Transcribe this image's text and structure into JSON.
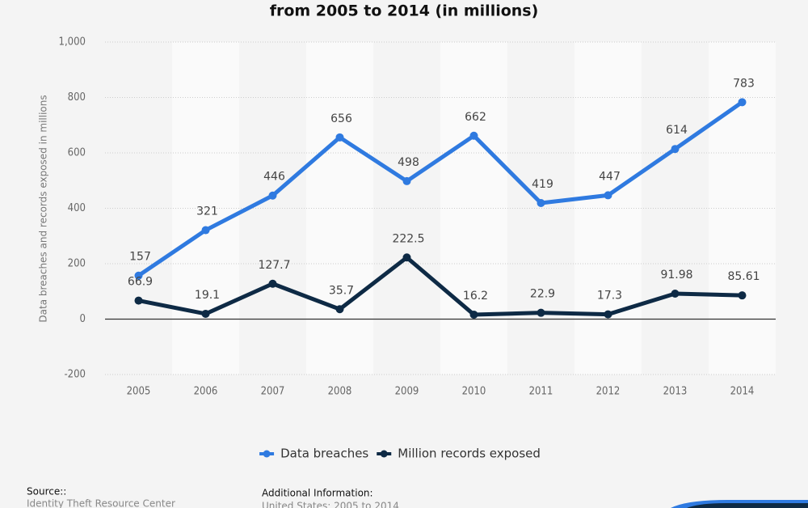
{
  "chart_data": {
    "type": "line",
    "title": "from 2005 to 2014 (in millions)",
    "y_label": "Data breaches and records exposed in millions",
    "categories": [
      "2005",
      "2006",
      "2007",
      "2008",
      "2009",
      "2010",
      "2011",
      "2012",
      "2013",
      "2014"
    ],
    "series": [
      {
        "name": "Data breaches",
        "color": "#2f7ae0",
        "values": [
          157,
          321,
          446,
          656,
          498,
          662,
          419,
          447,
          614,
          783
        ]
      },
      {
        "name": "Million records exposed",
        "color": "#0e2a45",
        "values": [
          66.9,
          19.1,
          127.7,
          35.7,
          222.5,
          16.2,
          22.9,
          17.3,
          91.98,
          85.61
        ]
      }
    ],
    "ylim": [
      -200,
      1000
    ],
    "yticks": [
      -200,
      0,
      200,
      400,
      600,
      800,
      {
        "value": 1000,
        "label": "1,000"
      }
    ],
    "grid": true,
    "legend": "bottom",
    "source_heading": "Source::",
    "source": "Identity Theft Resource Center",
    "info_heading": "Additional Information:",
    "info": "United States; 2005 to 2014"
  }
}
